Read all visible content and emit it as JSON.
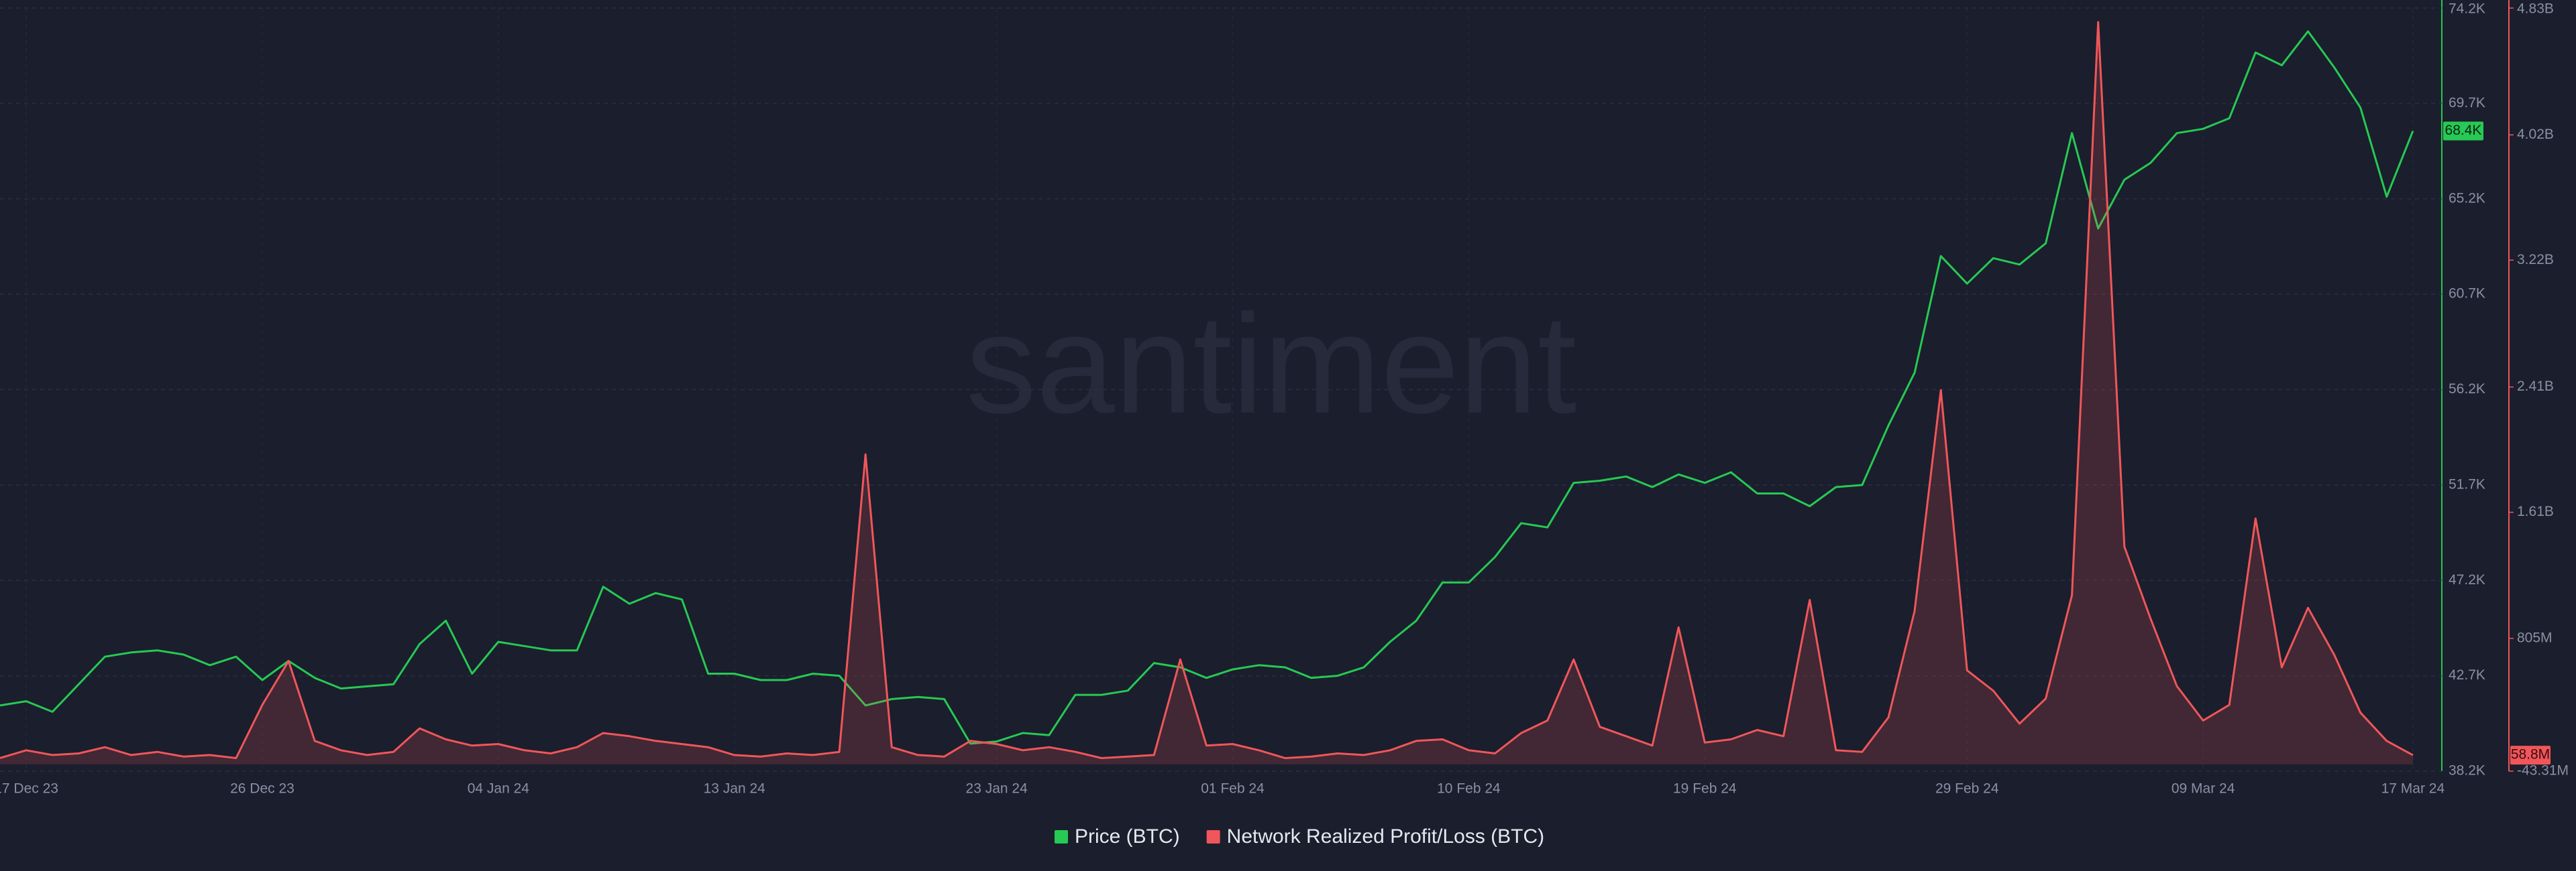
{
  "chart_data": {
    "type": "line",
    "watermark": "santiment",
    "x": [
      "2023-12-16",
      "2023-12-17",
      "2023-12-18",
      "2023-12-19",
      "2023-12-20",
      "2023-12-21",
      "2023-12-22",
      "2023-12-23",
      "2023-12-24",
      "2023-12-25",
      "2023-12-26",
      "2023-12-27",
      "2023-12-28",
      "2023-12-29",
      "2023-12-30",
      "2023-12-31",
      "2024-01-01",
      "2024-01-02",
      "2024-01-03",
      "2024-01-04",
      "2024-01-05",
      "2024-01-06",
      "2024-01-07",
      "2024-01-08",
      "2024-01-09",
      "2024-01-10",
      "2024-01-11",
      "2024-01-12",
      "2024-01-13",
      "2024-01-14",
      "2024-01-15",
      "2024-01-16",
      "2024-01-17",
      "2024-01-18",
      "2024-01-19",
      "2024-01-20",
      "2024-01-21",
      "2024-01-22",
      "2024-01-23",
      "2024-01-24",
      "2024-01-25",
      "2024-01-26",
      "2024-01-27",
      "2024-01-28",
      "2024-01-29",
      "2024-01-30",
      "2024-01-31",
      "2024-02-01",
      "2024-02-02",
      "2024-02-03",
      "2024-02-04",
      "2024-02-05",
      "2024-02-06",
      "2024-02-07",
      "2024-02-08",
      "2024-02-09",
      "2024-02-10",
      "2024-02-11",
      "2024-02-12",
      "2024-02-13",
      "2024-02-14",
      "2024-02-15",
      "2024-02-16",
      "2024-02-17",
      "2024-02-18",
      "2024-02-19",
      "2024-02-20",
      "2024-02-21",
      "2024-02-22",
      "2024-02-23",
      "2024-02-24",
      "2024-02-25",
      "2024-02-26",
      "2024-02-27",
      "2024-02-28",
      "2024-02-29",
      "2024-03-01",
      "2024-03-02",
      "2024-03-03",
      "2024-03-04",
      "2024-03-05",
      "2024-03-06",
      "2024-03-07",
      "2024-03-08",
      "2024-03-09",
      "2024-03-10",
      "2024-03-11",
      "2024-03-12",
      "2024-03-13",
      "2024-03-14",
      "2024-03-15",
      "2024-03-16",
      "2024-03-17"
    ],
    "xlim": [
      "2023-12-16",
      "2024-03-18"
    ],
    "xticks": [
      {
        "value": "2023-12-17",
        "label": "17 Dec 23"
      },
      {
        "value": "2023-12-26",
        "label": "26 Dec 23"
      },
      {
        "value": "2024-01-04",
        "label": "04 Jan 24"
      },
      {
        "value": "2024-01-13",
        "label": "13 Jan 24"
      },
      {
        "value": "2024-01-23",
        "label": "23 Jan 24"
      },
      {
        "value": "2024-02-01",
        "label": "01 Feb 24"
      },
      {
        "value": "2024-02-10",
        "label": "10 Feb 24"
      },
      {
        "value": "2024-02-19",
        "label": "19 Feb 24"
      },
      {
        "value": "2024-02-29",
        "label": "29 Feb 24"
      },
      {
        "value": "2024-03-09",
        "label": "09 Mar 24"
      },
      {
        "value": "2024-03-17",
        "label": "17 Mar 24"
      }
    ],
    "ylim": [
      38200,
      74200
    ],
    "yticks": [
      {
        "value": 38200,
        "label": "38.2K"
      },
      {
        "value": 42700,
        "label": "42.7K"
      },
      {
        "value": 47200,
        "label": "47.2K"
      },
      {
        "value": 51700,
        "label": "51.7K"
      },
      {
        "value": 56200,
        "label": "56.2K"
      },
      {
        "value": 60700,
        "label": "60.7K"
      },
      {
        "value": 65200,
        "label": "65.2K"
      },
      {
        "value": 69700,
        "label": "69.7K"
      },
      {
        "value": 74200,
        "label": "74.2K"
      }
    ],
    "y2lim": [
      -43310000,
      4830000000
    ],
    "y2ticks": [
      {
        "value": -43310000,
        "label": "-43.31M"
      },
      {
        "value": 805000000,
        "label": "805M"
      },
      {
        "value": 1610000000,
        "label": "1.61B"
      },
      {
        "value": 2410000000,
        "label": "2.41B"
      },
      {
        "value": 3220000000,
        "label": "3.22B"
      },
      {
        "value": 4020000000,
        "label": "4.02B"
      },
      {
        "value": 4830000000,
        "label": "4.83B"
      }
    ],
    "grid": true,
    "series": [
      {
        "name": "Price (BTC)",
        "color": "#26c953",
        "axis": "y",
        "last_label": "68.4K",
        "values": [
          41300,
          41500,
          41000,
          42300,
          43600,
          43800,
          43900,
          43700,
          43200,
          43600,
          42500,
          43400,
          42600,
          42100,
          42200,
          42300,
          44200,
          45300,
          42800,
          44300,
          44100,
          43900,
          43900,
          46900,
          46100,
          46600,
          46300,
          42800,
          42800,
          42500,
          42500,
          42800,
          42700,
          41300,
          41600,
          41700,
          41600,
          39500,
          39600,
          40000,
          39900,
          41800,
          41800,
          42000,
          43300,
          43100,
          42600,
          43000,
          43200,
          43100,
          42600,
          42700,
          43100,
          44300,
          45300,
          47100,
          47100,
          48300,
          49900,
          49700,
          51800,
          51900,
          52100,
          51600,
          52200,
          51800,
          52300,
          51300,
          51300,
          50700,
          51600,
          51700,
          54500,
          57000,
          62500,
          61200,
          62400,
          62100,
          63100,
          68300,
          63800,
          66100,
          66900,
          68300,
          68500,
          69000,
          72100,
          71500,
          73100,
          71400,
          69500,
          65300,
          68400
        ]
      },
      {
        "name": "Network Realized Profit/Loss (BTC)",
        "color": "#f0565a",
        "axis": "y2",
        "last_label": "58.8M",
        "values": [
          40000000,
          90000000,
          60000000,
          70000000,
          110000000,
          60000000,
          80000000,
          50000000,
          60000000,
          40000000,
          380000000,
          660000000,
          150000000,
          90000000,
          60000000,
          80000000,
          230000000,
          160000000,
          120000000,
          130000000,
          90000000,
          70000000,
          110000000,
          200000000,
          180000000,
          150000000,
          130000000,
          110000000,
          60000000,
          50000000,
          70000000,
          60000000,
          80000000,
          1980000000,
          110000000,
          60000000,
          50000000,
          150000000,
          130000000,
          90000000,
          110000000,
          80000000,
          40000000,
          50000000,
          60000000,
          670000000,
          120000000,
          130000000,
          90000000,
          40000000,
          50000000,
          70000000,
          60000000,
          90000000,
          150000000,
          160000000,
          90000000,
          70000000,
          200000000,
          280000000,
          670000000,
          240000000,
          180000000,
          120000000,
          875000000,
          140000000,
          160000000,
          220000000,
          180000000,
          1050000000,
          90000000,
          80000000,
          300000000,
          980000000,
          2390000000,
          600000000,
          470000000,
          260000000,
          420000000,
          1080000000,
          4740000000,
          1390000000,
          930000000,
          500000000,
          280000000,
          380000000,
          1570000000,
          620000000,
          1000000000,
          700000000,
          330000000,
          150000000,
          58800000
        ]
      }
    ]
  }
}
